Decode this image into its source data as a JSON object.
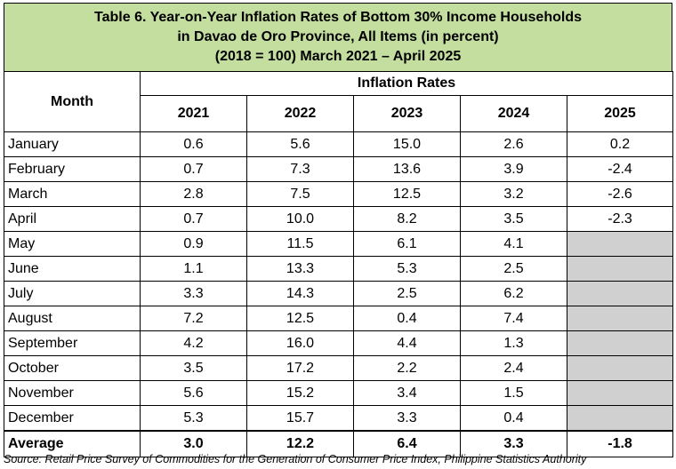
{
  "title": {
    "line1": "Table 6. Year-on-Year Inflation Rates of Bottom 30% Income Households",
    "line2": "in Davao de Oro Province, All Items (in percent)",
    "line3": "(2018 = 100) March 2021 – April 2025"
  },
  "header": {
    "month_label": "Month",
    "group_label": "Inflation Rates",
    "years": [
      "2021",
      "2022",
      "2023",
      "2024",
      "2025"
    ]
  },
  "rows": [
    {
      "month": "January",
      "values": [
        "0.6",
        "5.6",
        "15.0",
        "2.6",
        "0.2"
      ]
    },
    {
      "month": "February",
      "values": [
        "0.7",
        "7.3",
        "13.6",
        "3.9",
        "-2.4"
      ]
    },
    {
      "month": "March",
      "values": [
        "2.8",
        "7.5",
        "12.5",
        "3.2",
        "-2.6"
      ]
    },
    {
      "month": "April",
      "values": [
        "0.7",
        "10.0",
        "8.2",
        "3.5",
        "-2.3"
      ]
    },
    {
      "month": "May",
      "values": [
        "0.9",
        "11.5",
        "6.1",
        "4.1",
        ""
      ]
    },
    {
      "month": "June",
      "values": [
        "1.1",
        "13.3",
        "5.3",
        "2.5",
        ""
      ]
    },
    {
      "month": "July",
      "values": [
        "3.3",
        "14.3",
        "2.5",
        "6.2",
        ""
      ]
    },
    {
      "month": "August",
      "values": [
        "7.2",
        "12.5",
        "0.4",
        "7.4",
        ""
      ]
    },
    {
      "month": "September",
      "values": [
        "4.2",
        "16.0",
        "4.4",
        "1.3",
        ""
      ]
    },
    {
      "month": "October",
      "values": [
        "3.5",
        "17.2",
        "2.2",
        "2.4",
        ""
      ]
    },
    {
      "month": "November",
      "values": [
        "5.6",
        "15.2",
        "3.4",
        "1.5",
        ""
      ]
    },
    {
      "month": "December",
      "values": [
        "5.3",
        "15.7",
        "3.3",
        "0.4",
        ""
      ]
    }
  ],
  "average": {
    "label": "Average",
    "values": [
      "3.0",
      "12.2",
      "6.4",
      "3.3",
      "-1.8"
    ]
  },
  "source": "Source: Retail Price Survey of Commodities for the Generation of Consumer Price Index, Philippine Statistics Authority",
  "colors": {
    "title_background": "#c4dea0",
    "unavailable_cell": "#d0d0d0"
  }
}
